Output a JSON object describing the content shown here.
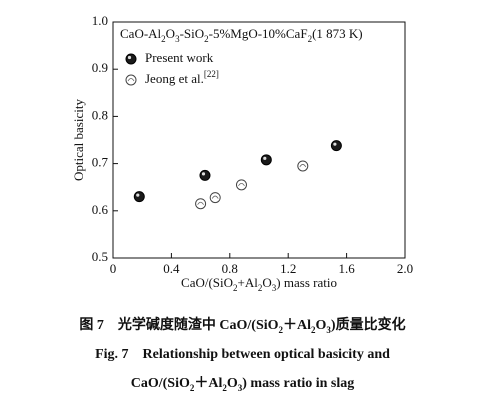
{
  "chart_data": {
    "type": "scatter",
    "annotation": "CaO-Al2O3-SiO2-5%MgO-10%CaF2(1 873 K)",
    "xlabel": "CaO/(SiO2+Al2O3) mass ratio",
    "ylabel": "Optical basicity",
    "xlim": [
      0,
      2
    ],
    "ylim": [
      0.5,
      1
    ],
    "xticks": [
      0,
      0.4,
      0.8,
      1.2,
      1.6,
      {
        "value": 2,
        "label": "2.0"
      }
    ],
    "yticks": [
      0.5,
      0.6,
      0.7,
      0.8,
      0.9,
      {
        "value": 1,
        "label": "1.0"
      }
    ],
    "legend": "upper left",
    "series": [
      {
        "name": "Present work",
        "color": "#1a1a1a",
        "x": [
          0.18,
          0.63,
          1.05,
          1.53
        ],
        "values": [
          0.63,
          0.675,
          0.708,
          0.738
        ]
      },
      {
        "name": "Jeong et al.[22]",
        "color": "#ffffff",
        "x": [
          0.6,
          0.7,
          0.88,
          1.3
        ],
        "values": [
          0.615,
          0.628,
          0.655,
          0.695
        ]
      }
    ],
    "caption": [
      "图 7　光学碱度随渣中 CaO/(SiO2＋Al2O3)质量比变化",
      "Fig. 7　Relationship between optical basicity and",
      "CaO/(SiO2＋Al2O3) mass ratio in slag"
    ]
  }
}
